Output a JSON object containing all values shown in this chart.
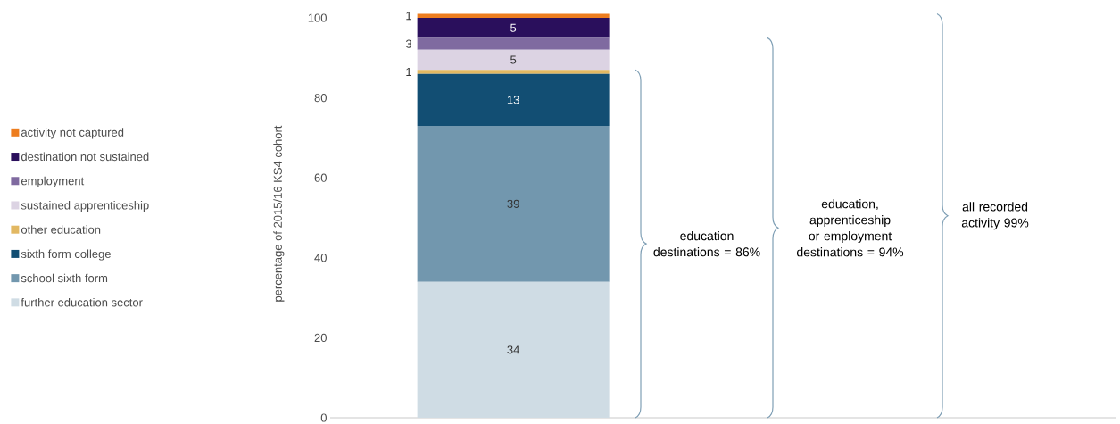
{
  "chart_data": {
    "type": "bar",
    "stacked": true,
    "ylabel": "percentage of 2015/16 KS4 cohort",
    "categories": [
      null
    ],
    "series": [
      {
        "name": "further education sector",
        "color": "#cfdce4",
        "values": [
          34
        ]
      },
      {
        "name": "school sixth form",
        "color": "#7297ae",
        "values": [
          39
        ]
      },
      {
        "name": "sixth form college",
        "color": "#124e73",
        "values": [
          13
        ]
      },
      {
        "name": "other education",
        "color": "#e2b862",
        "values": [
          1
        ]
      },
      {
        "name": "sustained apprenticeship",
        "color": "#dcd3e3",
        "values": [
          5
        ]
      },
      {
        "name": "employment",
        "color": "#7f6aa0",
        "values": [
          3
        ]
      },
      {
        "name": "destination not sustained",
        "color": "#2a0f5c",
        "values": [
          5
        ]
      },
      {
        "name": "activity not captured",
        "color": "#ed7d1f",
        "values": [
          1
        ]
      }
    ],
    "ylim": [
      0,
      102
    ],
    "yticks": [
      0,
      20,
      40,
      60,
      80,
      100
    ],
    "data_labels": true,
    "legend": "left",
    "annotations": [
      "education destinations = 86%",
      "education, apprenticeship or employment destinations = 94%",
      "all recorded activity 99%"
    ]
  }
}
